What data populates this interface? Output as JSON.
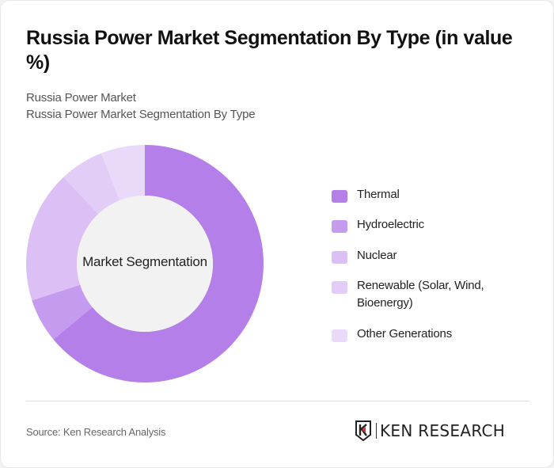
{
  "header": {
    "title": "Russia Power Market Segmentation By Type (in value %)",
    "subtitle_1": "Russia Power Market",
    "subtitle_2": "Russia Power Market Segmentation By Type"
  },
  "chart": {
    "center_label": "Market Segmentation"
  },
  "legend": {
    "items": [
      {
        "label": "Thermal",
        "color": "#b47fe8"
      },
      {
        "label": "Hydroelectric",
        "color": "#c59bef"
      },
      {
        "label": "Nuclear",
        "color": "#dbbff5"
      },
      {
        "label": "Renewable (Solar, Wind, Bioenergy)",
        "color": "#e2cdf6"
      },
      {
        "label": "Other Generations",
        "color": "#e9dafa"
      }
    ]
  },
  "footer": {
    "source": "Source: Ken Research Analysis",
    "logo_text": "KEN RESEARCH"
  },
  "chart_data": {
    "type": "pie",
    "subtype": "donut",
    "title": "Russia Power Market Segmentation By Type (in value %)",
    "center_label": "Market Segmentation",
    "categories": [
      "Thermal",
      "Hydroelectric",
      "Nuclear",
      "Renewable (Solar, Wind, Bioenergy)",
      "Other Generations"
    ],
    "values": [
      64,
      6,
      18,
      6,
      6
    ],
    "colors": [
      "#b47fe8",
      "#c59bef",
      "#dbbff5",
      "#e2cdf6",
      "#e9dafa"
    ],
    "legend_position": "right",
    "start_angle": "12 o'clock, clockwise"
  }
}
